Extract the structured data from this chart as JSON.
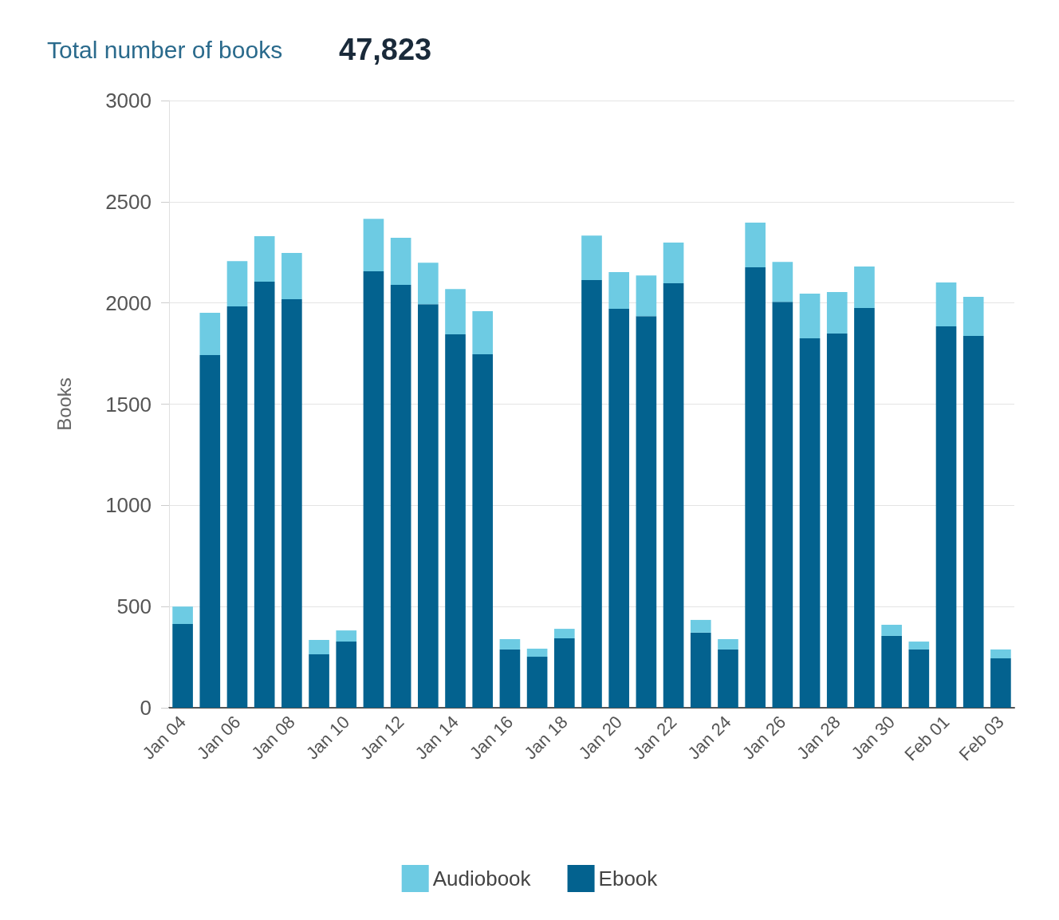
{
  "chart_data": {
    "type": "bar",
    "title": "Total number of books",
    "subtitle": "47,823",
    "ylabel": "Books",
    "categories": [
      "Jan 04",
      null,
      "Jan 06",
      null,
      "Jan 08",
      null,
      "Jan 10",
      null,
      "Jan 12",
      null,
      "Jan 14",
      null,
      "Jan 16",
      null,
      "Jan 18",
      null,
      "Jan 20",
      null,
      "Jan 22",
      null,
      "Jan 24",
      null,
      "Jan 26",
      null,
      "Jan 28",
      null,
      "Jan 30",
      null,
      "Feb 01",
      null,
      "Feb 03"
    ],
    "series": [
      {
        "name": "Ebook",
        "color": "#03628f",
        "values": [
          414,
          1742,
          1983,
          2105,
          2018,
          264,
          327,
          2156,
          2089,
          1994,
          1845,
          1746,
          288,
          252,
          343,
          2113,
          1971,
          1935,
          2097,
          371,
          288,
          2176,
          2006,
          1825,
          1849,
          1975,
          355,
          288,
          1884,
          1837,
          244
        ]
      },
      {
        "name": "Audiobook",
        "color": "#6dcbe3",
        "values": [
          86,
          209,
          224,
          225,
          229,
          71,
          55,
          260,
          233,
          205,
          224,
          213,
          51,
          40,
          47,
          220,
          181,
          201,
          201,
          63,
          51,
          221,
          197,
          221,
          205,
          205,
          55,
          39,
          217,
          193,
          44
        ]
      }
    ],
    "stacked": true,
    "ylim": [
      0,
      3000
    ],
    "yticks": [
      0,
      500,
      1000,
      1500,
      2000,
      2500,
      3000
    ],
    "grid": "y",
    "legend": "bottom"
  }
}
